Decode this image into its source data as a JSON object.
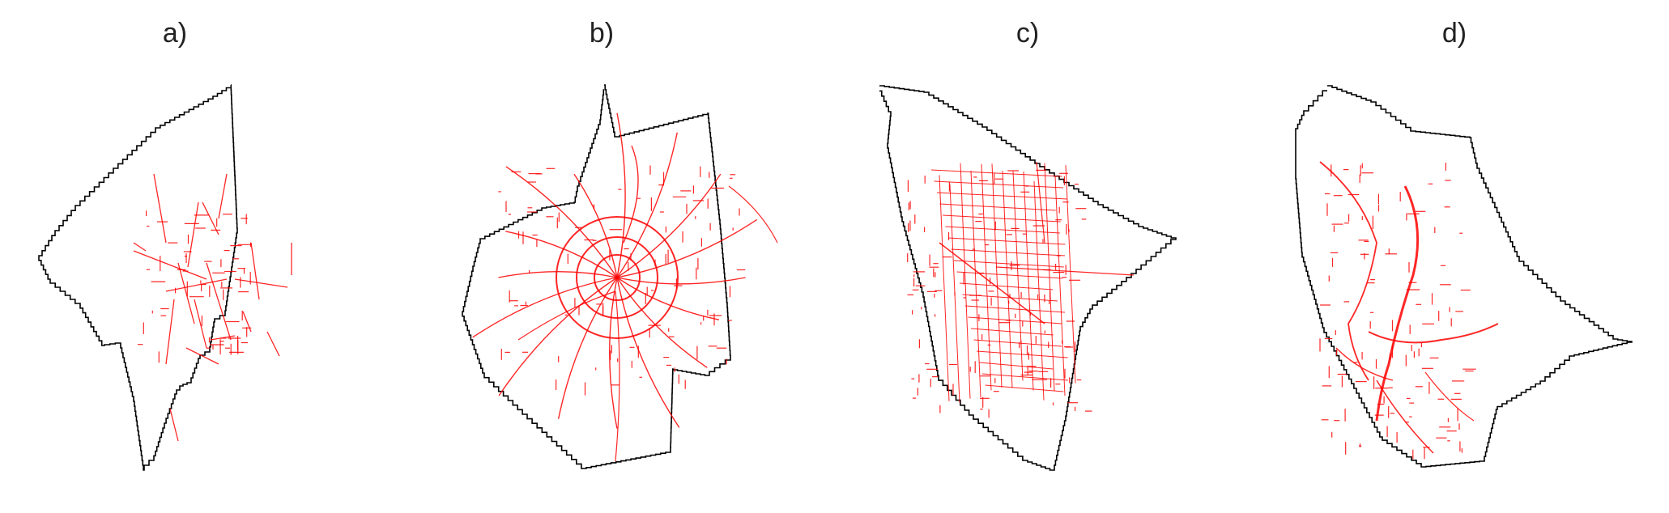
{
  "panels": [
    {
      "label": "a)",
      "network_color": "#ff0000",
      "boundary_color": "#000000"
    },
    {
      "label": "b)",
      "network_color": "#ff0000",
      "boundary_color": "#000000"
    },
    {
      "label": "c)",
      "network_color": "#ff0000",
      "boundary_color": "#000000"
    },
    {
      "label": "d)",
      "network_color": "#ff0000",
      "boundary_color": "#000000"
    }
  ]
}
